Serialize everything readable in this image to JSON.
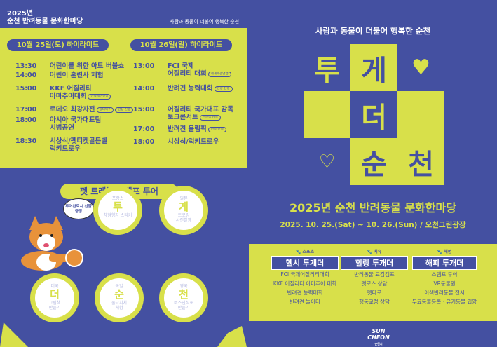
{
  "header": {
    "title_line1": "2025년",
    "title_line2": "순천 반려동물 문화한마당",
    "slogan": "사람과 동물이 더불어 행복한 순천"
  },
  "day1": {
    "label": "10월 25일(토) 하이라이트",
    "items": [
      {
        "time": "13:30",
        "event": "어린이를 위한 아트 버블쇼"
      },
      {
        "time": "14:00",
        "event": "어린이 훈련사 체험",
        "icon": "kkf-logo-icon"
      },
      {
        "time": "15:00",
        "event": "KKF 어질리티",
        "event2": "아마추어대회",
        "tag": "전국애견연맹",
        "icon": "kkf-logo-icon"
      },
      {
        "time": "17:00",
        "event": "로데오 최강자전",
        "tag": "공태이주",
        "tag2": "현장 진행"
      },
      {
        "time": "18:00",
        "event": "아시아 국가대표팀",
        "event2": "시범공연"
      },
      {
        "time": "18:30",
        "event": "시상식/펫티켓골든벨",
        "event2": "럭키드로우"
      }
    ]
  },
  "day2": {
    "label": "10월 26일(일) 하이라이트",
    "items": [
      {
        "time": "13:00",
        "event": "FCI 국제",
        "event2": "어질리티 대회",
        "tag": "세계애견연맹"
      },
      {
        "time": "14:00",
        "event": "반려견 능력대회",
        "tag": "현장 진행"
      },
      {
        "time": "15:00",
        "event": "어질리티 국가대표 감독",
        "event2": "토크콘서트",
        "tag": "김민성 감독"
      },
      {
        "time": "17:00",
        "event": "반려견 올림픽",
        "tag": "현장 진행"
      },
      {
        "time": "18:00",
        "event": "시상식/럭키드로우"
      }
    ]
  },
  "stamp_tour": {
    "title": "펫 트래블 스탬프 투어",
    "bubble": "투어완료시 선물증정",
    "stamps": [
      {
        "country": "프랑스",
        "char": "투",
        "activity": "체험형자 스티커",
        "activity2": ""
      },
      {
        "country": "일본",
        "char": "게",
        "activity": "트로링",
        "activity2": "사진촬영"
      },
      {
        "country": "미국",
        "char": "더",
        "activity": "그림책",
        "activity2": "만들기"
      },
      {
        "country": "독일",
        "char": "순",
        "activity": "물고치치",
        "activity2": "체험"
      },
      {
        "country": "영국",
        "char": "천",
        "activity": "버즈인식표",
        "activity2": "만들기"
      }
    ]
  },
  "poster": {
    "slogan": "사람과 동물이 더불어 행복한 순천",
    "chars": [
      "투",
      "게",
      "더",
      "순",
      "천"
    ],
    "title": "2025년 순천 반려동물 문화한마당",
    "date": "2025. 10. 25.(Sat) ~ 10. 26.(Sun) / 오천그린광장"
  },
  "programs": [
    {
      "category": "스포츠",
      "name": "헬시 투개더",
      "items": [
        "FCI 국제어질리티대회",
        "KKF 어질리티 아마추어 대회",
        "반려견 능력대회",
        "반려견 놀이터"
      ]
    },
    {
      "category": "치유",
      "name": "힐링 투개더",
      "items": [
        "반려동물 교감캠프",
        "펫로스 상담",
        "펫타로",
        "행동교정 상담"
      ]
    },
    {
      "category": "체험",
      "name": "해피 투개더",
      "items": [
        "스탬프 투어",
        "VR동물원",
        "이색반려동물 전시",
        "무료동물등록 · 유기동물 입양"
      ]
    }
  ],
  "logo": {
    "text": "SUN CHEON",
    "sub": "순천시"
  },
  "colors": {
    "blue": "#4450a1",
    "yellow": "#d8e04a"
  }
}
